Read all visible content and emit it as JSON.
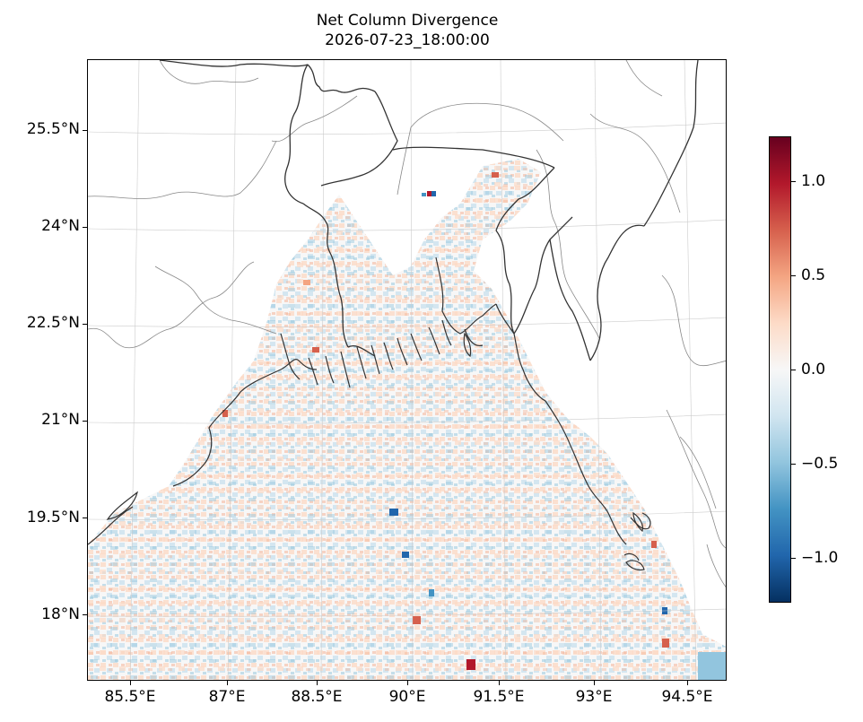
{
  "title": {
    "line1": "Net Column Divergence",
    "line2": "2026-07-23_18:00:00"
  },
  "map": {
    "projection": "lambert-conformal",
    "lon_range": [
      84.9,
      95.0
    ],
    "lat_range": [
      17.0,
      26.2
    ],
    "lat_ticks": [
      {
        "value": 25.5,
        "label": "25.5°N"
      },
      {
        "value": 24.0,
        "label": "24°N"
      },
      {
        "value": 22.5,
        "label": "22.5°N"
      },
      {
        "value": 21.0,
        "label": "21°N"
      },
      {
        "value": 19.5,
        "label": "19.5°N"
      },
      {
        "value": 18.0,
        "label": "18°N"
      }
    ],
    "lon_ticks": [
      {
        "value": 85.5,
        "label": "85.5°E"
      },
      {
        "value": 87.0,
        "label": "87°E"
      },
      {
        "value": 88.5,
        "label": "88.5°E"
      },
      {
        "value": 90.0,
        "label": "90°E"
      },
      {
        "value": 91.5,
        "label": "91.5°E"
      },
      {
        "value": 93.0,
        "label": "93°E"
      },
      {
        "value": 94.5,
        "label": "94.5°E"
      }
    ],
    "field": "net column divergence",
    "gridlines": true
  },
  "colorbar": {
    "colormap": "RdBu_r",
    "range": [
      -1.25,
      1.25
    ],
    "ticks": [
      {
        "value": 1.0,
        "label": "1.0"
      },
      {
        "value": 0.5,
        "label": "0.5"
      },
      {
        "value": 0.0,
        "label": "0.0"
      },
      {
        "value": -0.5,
        "label": "−0.5"
      },
      {
        "value": -1.0,
        "label": "−1.0"
      }
    ],
    "colors": [
      "#053061",
      "#2166ac",
      "#4393c3",
      "#92c5de",
      "#d1e5f0",
      "#f7f7f7",
      "#fddbc7",
      "#f4a582",
      "#d6604d",
      "#b2182b",
      "#67001f"
    ]
  }
}
